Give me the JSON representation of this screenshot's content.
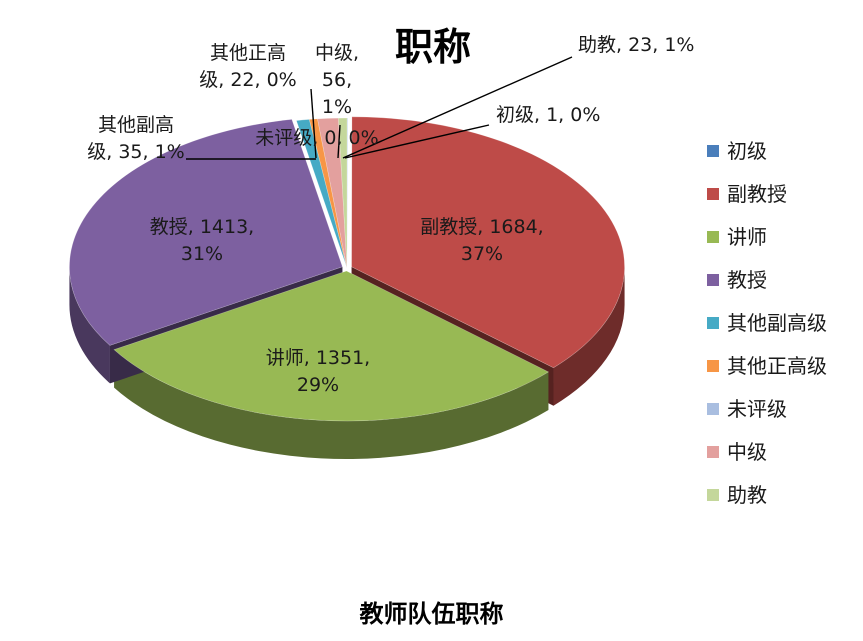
{
  "caption": "教师队伍职称",
  "chart_data": {
    "type": "pie",
    "title": "职称",
    "style": "3d-exploded",
    "legend_position": "right",
    "categories": [
      "初级",
      "副教授",
      "讲师",
      "教授",
      "其他副高级",
      "其他正高级",
      "未评级",
      "中级",
      "助教"
    ],
    "values": [
      1,
      1684,
      1351,
      1413,
      35,
      22,
      0,
      56,
      23
    ],
    "percent_labels": [
      "0%",
      "37%",
      "29%",
      "31%",
      "1%",
      "0%",
      "0%",
      "1%",
      "1%"
    ],
    "colors": [
      "#4a7ebb",
      "#be4b48",
      "#98b954",
      "#7d60a0",
      "#46aac5",
      "#f79646",
      "#a9bee0",
      "#e3a09e",
      "#c4d79b"
    ],
    "data_labels": [
      {
        "lines": [
          "初级, 1, 0%"
        ]
      },
      {
        "lines": [
          "副教授, 1684,",
          "37%"
        ]
      },
      {
        "lines": [
          "讲师, 1351,",
          "29%"
        ]
      },
      {
        "lines": [
          "教授, 1413,",
          "31%"
        ]
      },
      {
        "lines": [
          "其他副高",
          "级, 35, 1%"
        ]
      },
      {
        "lines": [
          "其他正高",
          "级, 22, 0%"
        ]
      },
      {
        "lines": [
          "未评级, 0, 0%"
        ]
      },
      {
        "lines": [
          "中级,",
          "56,",
          "1%"
        ]
      },
      {
        "lines": [
          "助教, 23, 1%"
        ]
      }
    ]
  }
}
